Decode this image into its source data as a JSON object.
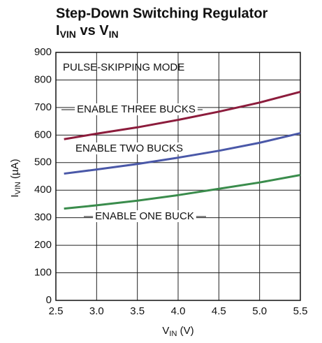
{
  "chart_data": {
    "type": "line",
    "title": "Step-Down Switching Regulator",
    "subtitle_parts": [
      "I",
      "VIN",
      " vs V",
      "IN"
    ],
    "xlabel_parts": [
      "V",
      "IN",
      " (V)"
    ],
    "ylabel_parts": [
      "I",
      "VIN",
      " (µA)"
    ],
    "annotations": [
      "PULSE-SKIPPING MODE"
    ],
    "x": [
      2.6,
      3.0,
      3.5,
      4.0,
      4.5,
      5.0,
      5.5
    ],
    "series": [
      {
        "name": "ENABLE THREE BUCKS",
        "color": "#8c1c3c",
        "values": [
          585,
          605,
          628,
          655,
          685,
          718,
          757
        ]
      },
      {
        "name": "ENABLE TWO BUCKS",
        "color": "#4a58a8",
        "values": [
          460,
          475,
          495,
          518,
          543,
          572,
          607
        ]
      },
      {
        "name": "ENABLE ONE BUCK",
        "color": "#3a8c4c",
        "values": [
          333,
          345,
          362,
          382,
          405,
          428,
          455
        ]
      }
    ],
    "xlim": [
      2.5,
      5.5
    ],
    "xticks": [
      2.5,
      {
        "value": 3,
        "label": "3.0"
      },
      3.5,
      {
        "value": 4,
        "label": "4.0"
      },
      4.5,
      {
        "value": 5,
        "label": "5.0"
      },
      5.5
    ],
    "ylim": [
      0,
      900
    ],
    "yticks": [
      0,
      100,
      200,
      300,
      400,
      500,
      600,
      700,
      800,
      900
    ],
    "grid": true
  }
}
